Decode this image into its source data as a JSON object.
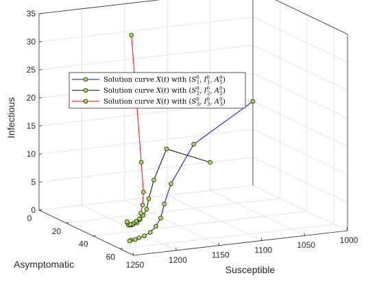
{
  "chart_data": {
    "type": "line3d",
    "xlabel": "Susceptible",
    "ylabel": "Asymptomatic",
    "zlabel": "Infectious",
    "xlim": [
      1000,
      1250
    ],
    "ylim": [
      0,
      70
    ],
    "zlim": [
      0,
      35
    ],
    "xticks": [
      "1000",
      "1050",
      "1100",
      "1150",
      "1200",
      "1250"
    ],
    "yticks": [
      "0",
      "20",
      "40",
      "60"
    ],
    "zticks": [
      "0",
      "5",
      "10",
      "15",
      "20",
      "25",
      "30",
      "35"
    ],
    "grid": true,
    "legend_position": "upper-left",
    "series": [
      {
        "name": "Solution curve X(t) with (S1, I1, A1)",
        "legend_parts": [
          "Solution curve ",
          "X",
          "(",
          "t",
          ") with (",
          "S",
          "0",
          "1",
          ", ",
          "I",
          "0",
          "1",
          ", ",
          "A",
          "0",
          "1",
          ")"
        ],
        "color": "#0000ff",
        "points": [
          [
            1000,
            0,
            15
          ],
          [
            1085,
            10,
            10
          ],
          [
            1140,
            28,
            6
          ],
          [
            1170,
            42,
            4.5
          ],
          [
            1190,
            52,
            3.5
          ],
          [
            1205,
            58,
            3
          ],
          [
            1218,
            62,
            2.6
          ],
          [
            1228,
            64,
            2.4
          ],
          [
            1236,
            65,
            2.3
          ],
          [
            1242,
            66,
            2.2
          ],
          [
            1247,
            66,
            2.2
          ],
          [
            1250,
            67,
            2.2
          ]
        ]
      },
      {
        "name": "Solution curve X(t) with (S2, I2, A2)",
        "legend_parts": [
          "Solution curve ",
          "X",
          "(",
          "t",
          ") with (",
          "S",
          "0",
          "2",
          ", ",
          "I",
          "0",
          "2",
          ", ",
          "A",
          "0",
          "2",
          ")"
        ],
        "color": "#000000",
        "points": [
          [
            1050,
            0,
            5
          ],
          [
            1120,
            12,
            10
          ],
          [
            1160,
            28,
            7
          ],
          [
            1185,
            40,
            5.5
          ],
          [
            1200,
            48,
            4.8
          ],
          [
            1212,
            53,
            4.5
          ],
          [
            1222,
            57,
            4.4
          ],
          [
            1230,
            60,
            4.3
          ],
          [
            1236,
            61,
            4.3
          ],
          [
            1240,
            62,
            4.3
          ],
          [
            1243,
            62,
            4.4
          ],
          [
            1245,
            63,
            4.5
          ]
        ]
      },
      {
        "name": "Solution curve X(t) with (S3, I3, A3)",
        "legend_parts": [
          "Solution curve ",
          "X",
          "(",
          "t",
          ") with (",
          "S",
          "0",
          "3",
          ", ",
          "I",
          "0",
          "3",
          ", ",
          "A",
          "0",
          "3",
          ")"
        ],
        "color": "#ff0000",
        "points": [
          [
            1150,
            5,
            30
          ],
          [
            1170,
            25,
            10
          ],
          [
            1188,
            38,
            6.5
          ],
          [
            1200,
            45,
            5.2
          ],
          [
            1210,
            50,
            4.5
          ],
          [
            1218,
            54,
            4.1
          ],
          [
            1225,
            56,
            4
          ],
          [
            1231,
            58,
            4
          ],
          [
            1236,
            60,
            4.1
          ],
          [
            1240,
            61,
            4.3
          ],
          [
            1243,
            61,
            4.6
          ],
          [
            1245,
            62,
            5
          ]
        ]
      }
    ]
  }
}
